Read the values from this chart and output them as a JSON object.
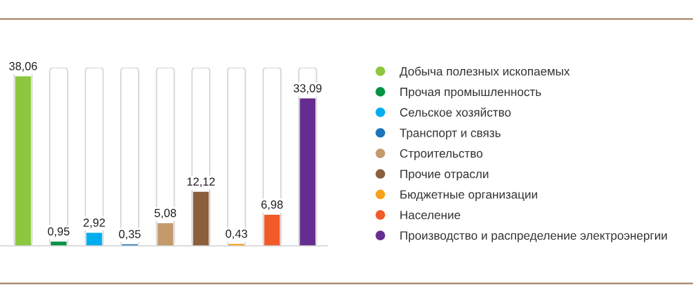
{
  "chart_data": {
    "type": "bar",
    "stacked": true,
    "categories": [
      null,
      null,
      null,
      null,
      null,
      null,
      null,
      null,
      null
    ],
    "series": [
      {
        "name": "Добыча полезных ископаемых",
        "color": "#8dc63f",
        "values": [
          38.06,
          null,
          null,
          null,
          null,
          null,
          null,
          null,
          null
        ],
        "value_labels": [
          "38,06",
          null,
          null,
          null,
          null,
          null,
          null,
          null,
          null
        ]
      },
      {
        "name": "Прочая промышленность",
        "color": "#009444",
        "values": [
          null,
          0.95,
          null,
          null,
          null,
          null,
          null,
          null,
          null
        ],
        "value_labels": [
          null,
          "0,95",
          null,
          null,
          null,
          null,
          null,
          null,
          null
        ]
      },
      {
        "name": "Сельское хозяйство",
        "color": "#00aeef",
        "values": [
          null,
          null,
          2.92,
          null,
          null,
          null,
          null,
          null,
          null
        ],
        "value_labels": [
          null,
          null,
          "2,92",
          null,
          null,
          null,
          null,
          null,
          null
        ]
      },
      {
        "name": "Транспорт и связь",
        "color": "#1c75bc",
        "values": [
          null,
          null,
          null,
          0.35,
          null,
          null,
          null,
          null,
          null
        ],
        "value_labels": [
          null,
          null,
          null,
          "0,35",
          null,
          null,
          null,
          null,
          null
        ]
      },
      {
        "name": "Строительство",
        "color": "#c49a6c",
        "values": [
          null,
          null,
          null,
          null,
          5.08,
          null,
          null,
          null,
          null
        ],
        "value_labels": [
          null,
          null,
          null,
          null,
          "5,08",
          null,
          null,
          null,
          null
        ]
      },
      {
        "name": "Прочие отрасли",
        "color": "#8b5e3c",
        "values": [
          null,
          null,
          null,
          null,
          null,
          12.12,
          null,
          null,
          null
        ],
        "value_labels": [
          null,
          null,
          null,
          null,
          null,
          "12,12",
          null,
          null,
          null
        ]
      },
      {
        "name": "Бюджетные организации",
        "color": "#f9a11b",
        "values": [
          null,
          null,
          null,
          null,
          null,
          null,
          0.43,
          null,
          null
        ],
        "value_labels": [
          null,
          null,
          null,
          null,
          null,
          null,
          "0,43",
          null,
          null
        ]
      },
      {
        "name": "Население",
        "color": "#f15a29",
        "values": [
          null,
          null,
          null,
          null,
          null,
          null,
          null,
          6.98,
          null
        ],
        "value_labels": [
          null,
          null,
          null,
          null,
          null,
          null,
          null,
          "6,98",
          null
        ]
      },
      {
        "name": "Производство и распределение электроэнергии",
        "color": "#662d91",
        "values": [
          null,
          null,
          null,
          null,
          null,
          null,
          null,
          null,
          33.09
        ],
        "value_labels": [
          null,
          null,
          null,
          null,
          null,
          null,
          null,
          null,
          "33,09"
        ]
      }
    ],
    "ylim": [
      0,
      40
    ],
    "tick_labels": false,
    "legend": "right"
  }
}
